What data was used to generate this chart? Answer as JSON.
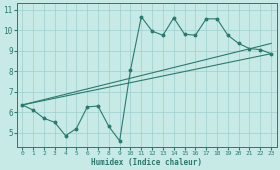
{
  "xlabel": "Humidex (Indice chaleur)",
  "ylabel": "",
  "bg_color": "#c8eae6",
  "line_color": "#2a7a70",
  "grid_color": "#9ecece",
  "xlim": [
    -0.5,
    23.5
  ],
  "ylim": [
    4.3,
    11.3
  ],
  "xticks": [
    0,
    1,
    2,
    3,
    4,
    5,
    6,
    7,
    8,
    9,
    10,
    11,
    12,
    13,
    14,
    15,
    16,
    17,
    18,
    19,
    20,
    21,
    22,
    23
  ],
  "yticks": [
    5,
    6,
    7,
    8,
    9,
    10,
    11
  ],
  "line1_x": [
    0,
    1,
    2,
    3,
    4,
    5,
    6,
    7,
    8,
    9,
    10,
    11,
    12,
    13,
    14,
    15,
    16,
    17,
    18,
    19,
    20,
    21,
    22,
    23
  ],
  "line1_y": [
    6.35,
    6.1,
    5.7,
    5.5,
    4.85,
    5.2,
    6.25,
    6.3,
    5.3,
    4.6,
    8.05,
    10.65,
    9.95,
    9.75,
    10.6,
    9.8,
    9.75,
    10.55,
    10.55,
    9.75,
    9.35,
    9.1,
    9.05,
    8.85
  ],
  "line2_x": [
    0,
    23
  ],
  "line2_y": [
    6.35,
    9.35
  ],
  "line3_x": [
    0,
    23
  ],
  "line3_y": [
    6.35,
    8.85
  ]
}
